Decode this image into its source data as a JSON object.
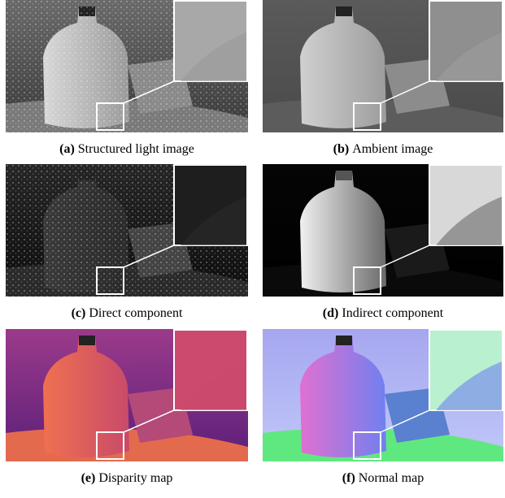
{
  "panels": [
    {
      "label": "(a)",
      "caption": "Structured light image"
    },
    {
      "label": "(b)",
      "caption": "Ambient image"
    },
    {
      "label": "(c)",
      "caption": "Direct component"
    },
    {
      "label": "(d)",
      "caption": "Indirect component"
    },
    {
      "label": "(e)",
      "caption": "Disparity map"
    },
    {
      "label": "(f)",
      "caption": "Normal map"
    }
  ]
}
